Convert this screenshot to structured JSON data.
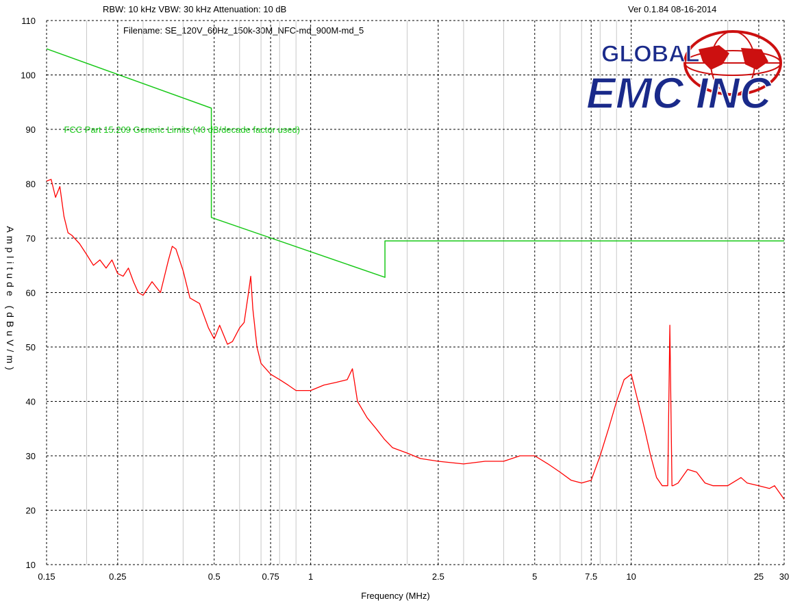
{
  "header": {
    "settings": "RBW: 10 kHz   VBW: 30 kHz    Attenuation: 10 dB",
    "version": "Ver 0.1.84     08-16-2014",
    "filename": "Filename: SE_120V_60Hz_150k-30M_NFC-md_900M-md_5"
  },
  "logo": {
    "line1": "GLOBAL",
    "line2": "EMC INC",
    "colors": {
      "text": "#1a2a8a",
      "globe": "#cc1010"
    }
  },
  "colors": {
    "limit": "#18c818",
    "emission": "#ff0000",
    "grid": "#000000",
    "minor_grid": "#c8c8c8"
  },
  "chart_data": {
    "type": "line",
    "xlabel": "Frequency (MHz)",
    "ylabel": "Amplitude (dBuV/m)",
    "x_scale": "log",
    "xlim": [
      0.15,
      30
    ],
    "ylim": [
      10,
      110
    ],
    "x_ticks": [
      0.15,
      0.25,
      0.5,
      0.75,
      1,
      2.5,
      5,
      7.5,
      10,
      25,
      30
    ],
    "x_tick_labels": [
      "0.15",
      "0.25",
      "0.5",
      "0.75",
      "1",
      "2.5",
      "5",
      "7.5",
      "10",
      "25",
      "30"
    ],
    "y_ticks": [
      10,
      20,
      30,
      40,
      50,
      60,
      70,
      80,
      90,
      100,
      110
    ],
    "y_tick_labels": [
      "10",
      "20",
      "30",
      "40",
      "50",
      "60",
      "70",
      "80",
      "90",
      "100",
      "110"
    ],
    "grid": true,
    "annotations": [
      {
        "text": "FCC Part 15.209 Generic Limits (40 dB/decade factor used)",
        "x": 0.17,
        "y": 90
      }
    ],
    "series": [
      {
        "role": "limit",
        "x": [
          0.15,
          0.49,
          0.49,
          1.705,
          1.705,
          30
        ],
        "y": [
          104.8,
          93.9,
          73.8,
          62.8,
          69.5,
          69.5
        ]
      },
      {
        "role": "emission",
        "x": [
          0.15,
          0.155,
          0.16,
          0.165,
          0.17,
          0.175,
          0.18,
          0.19,
          0.2,
          0.21,
          0.22,
          0.23,
          0.24,
          0.25,
          0.26,
          0.27,
          0.28,
          0.29,
          0.3,
          0.32,
          0.34,
          0.36,
          0.37,
          0.38,
          0.4,
          0.42,
          0.45,
          0.48,
          0.5,
          0.52,
          0.55,
          0.57,
          0.6,
          0.62,
          0.64,
          0.65,
          0.66,
          0.68,
          0.7,
          0.75,
          0.8,
          0.85,
          0.9,
          1.0,
          1.1,
          1.2,
          1.3,
          1.35,
          1.4,
          1.5,
          1.6,
          1.7,
          1.8,
          2.0,
          2.2,
          2.5,
          3.0,
          3.5,
          4.0,
          4.5,
          5.0,
          5.5,
          6.0,
          6.5,
          7.0,
          7.5,
          8.0,
          8.5,
          9.0,
          9.5,
          10.0,
          10.5,
          11.0,
          11.5,
          12.0,
          12.5,
          13.0,
          13.2,
          13.4,
          13.5,
          14.0,
          15.0,
          16.0,
          17.0,
          18.0,
          20.0,
          22.0,
          23.0,
          25.0,
          27.0,
          28.0,
          30.0
        ],
        "y": [
          80.5,
          80.8,
          77.5,
          79.5,
          74,
          71,
          70.5,
          69,
          67,
          65,
          66,
          64.5,
          66,
          63.5,
          63,
          64.5,
          62,
          60,
          59.5,
          62,
          60,
          66,
          68.5,
          68,
          64,
          59,
          58,
          53.5,
          51.5,
          54,
          50.5,
          51,
          53.5,
          54.5,
          60,
          63,
          57,
          50,
          47,
          45,
          44,
          43,
          42,
          42,
          43,
          43.5,
          44,
          46,
          40,
          37,
          35,
          33,
          31.5,
          30.5,
          29.5,
          29,
          28.5,
          29,
          29,
          30,
          30,
          28.5,
          27,
          25.5,
          25,
          25.5,
          30,
          35,
          40,
          44,
          45,
          40,
          35,
          30,
          26,
          24.5,
          24.5,
          54,
          24.5,
          24.5,
          25,
          27.5,
          27,
          25,
          24.5,
          24.5,
          26,
          25,
          24.5,
          24,
          24.5,
          22
        ]
      }
    ]
  }
}
